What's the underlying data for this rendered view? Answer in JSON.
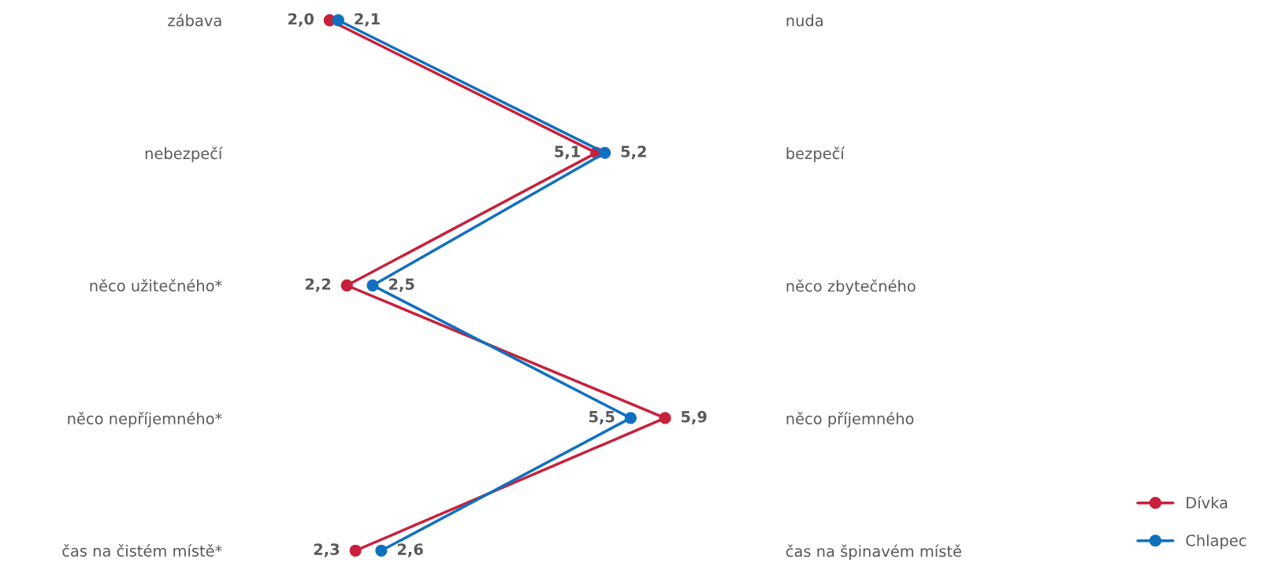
{
  "chart_data": {
    "type": "line",
    "orientation": "horizontal",
    "categories": [
      "zábava",
      "nebezpečí",
      "něco užitečného*",
      "něco nepříjemného*",
      "čas na čistém místě*"
    ],
    "y2_categories": [
      "nuda",
      "bezpečí",
      "něco zbytečného",
      "něco příjemného",
      "čas na špinavém místě"
    ],
    "series": [
      {
        "name": "Dívka",
        "color": "#c8203a",
        "values": [
          2.0,
          5.1,
          2.2,
          5.9,
          2.3
        ],
        "value_labels": [
          "2,0",
          "5,1",
          "2,2",
          "5,9",
          "2,3"
        ]
      },
      {
        "name": "Chlapec",
        "color": "#1070c0",
        "values": [
          2.1,
          5.2,
          2.5,
          5.5,
          2.6
        ],
        "value_labels": [
          "2,1",
          "5,2",
          "2,5",
          "5,5",
          "2,6"
        ]
      }
    ],
    "marker": "circle",
    "line_style": "solid",
    "legend": "bottom right",
    "grid": false
  }
}
